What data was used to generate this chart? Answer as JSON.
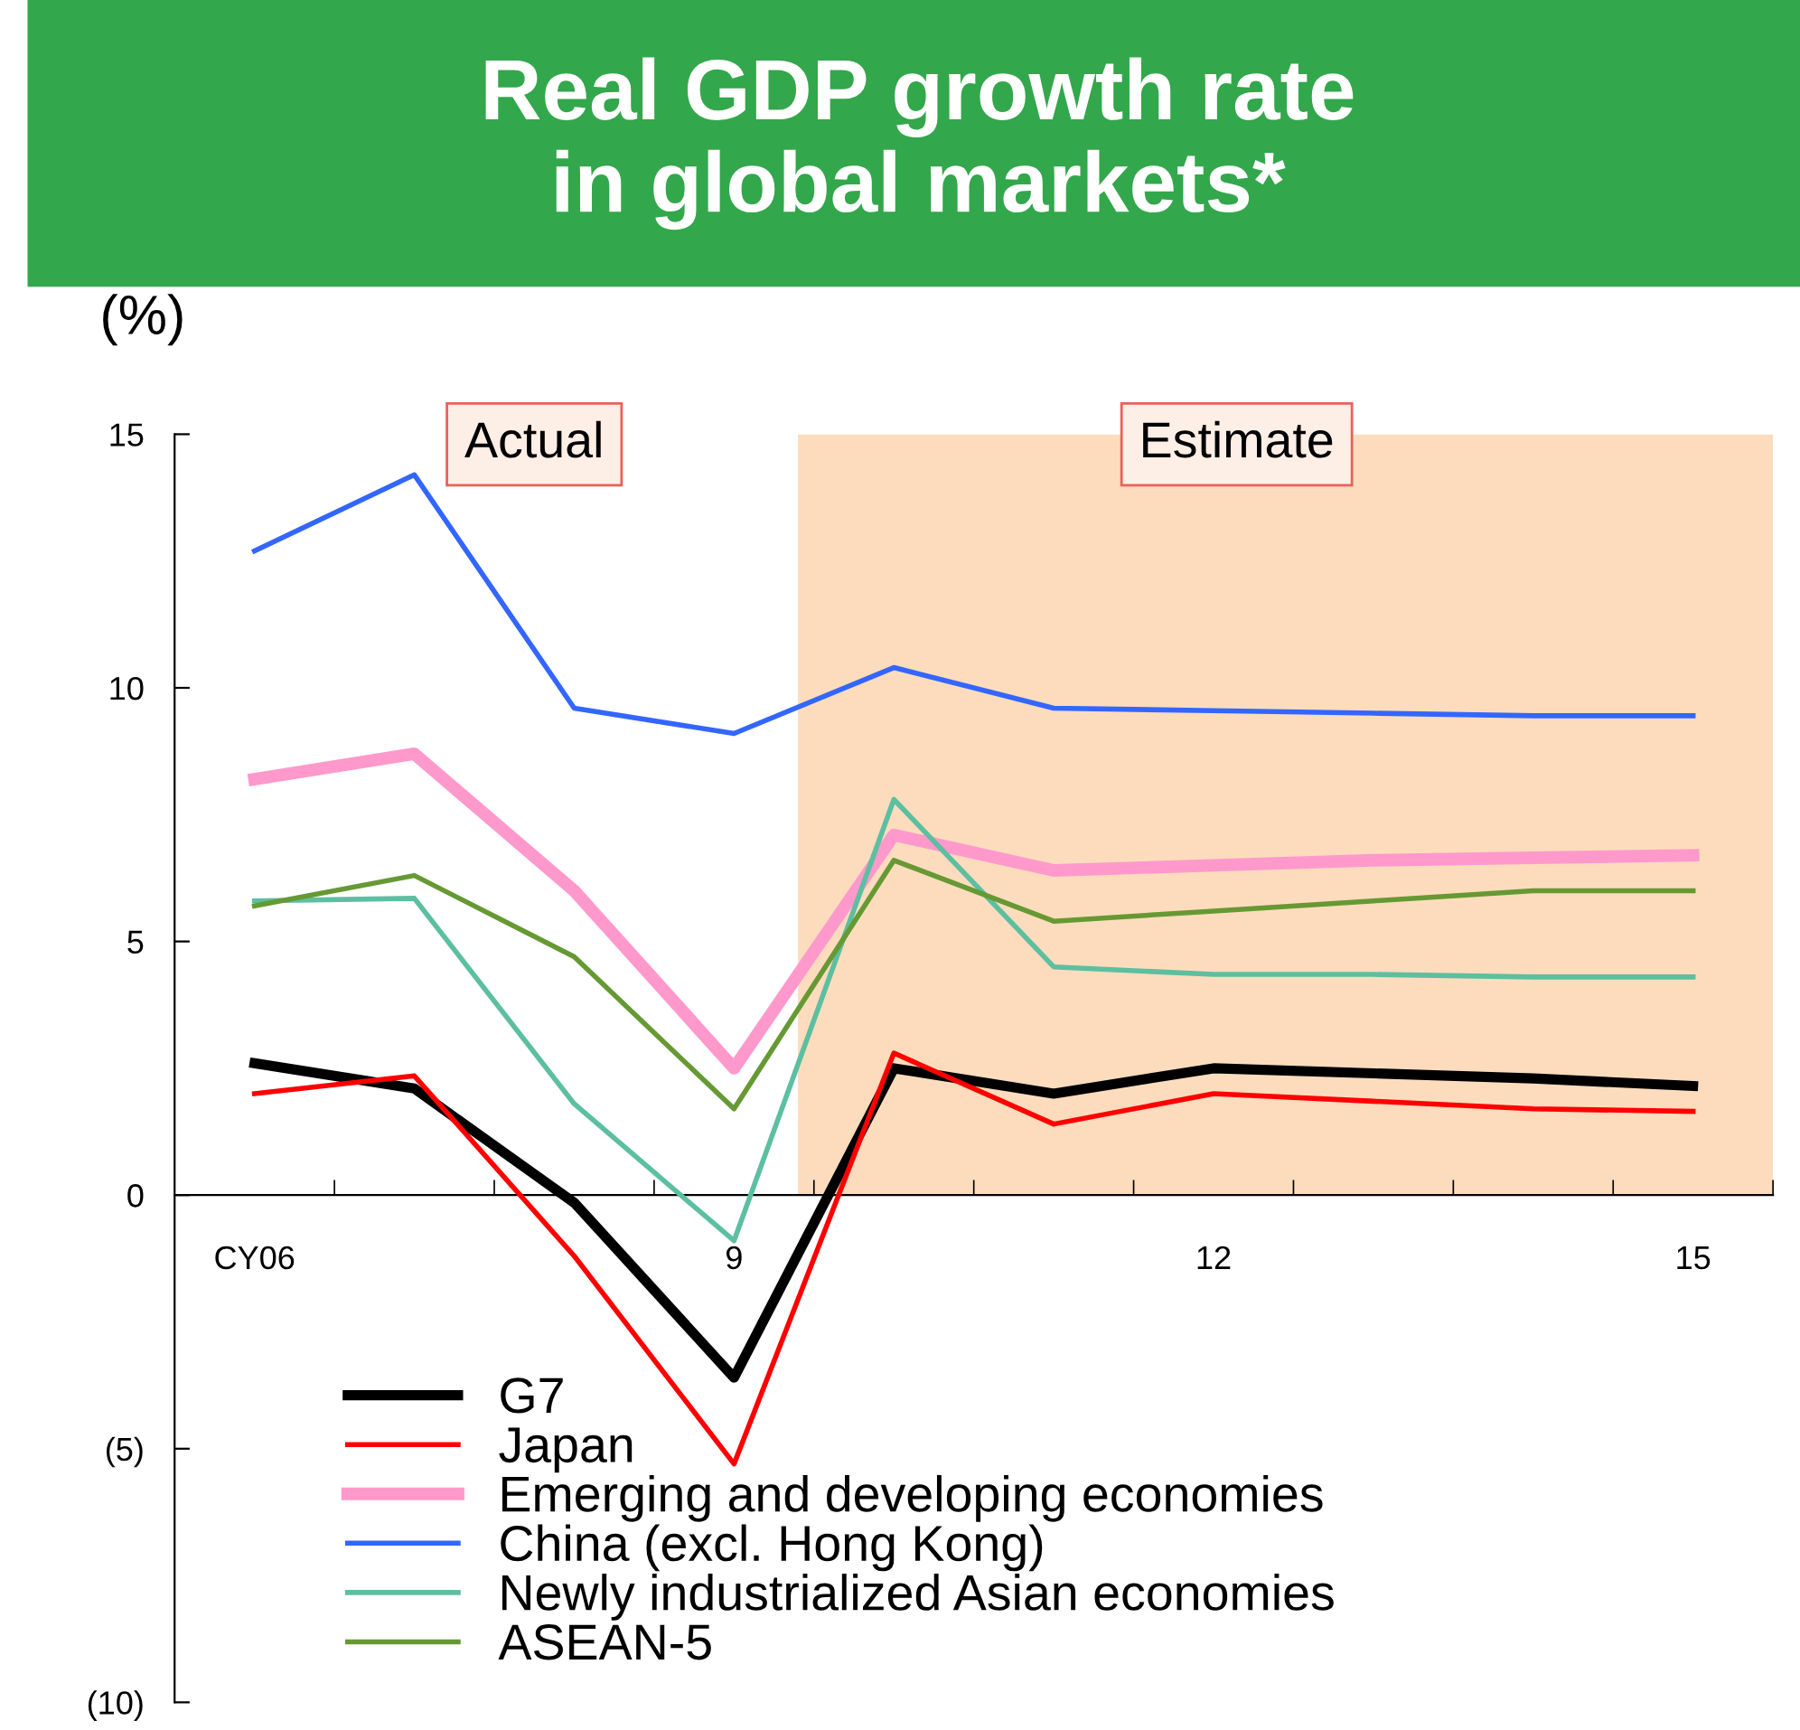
{
  "chart_data": {
    "type": "line",
    "title": "Real GDP growth rate\nin global markets*",
    "ylabel": "(%)",
    "x": [
      6,
      7,
      8,
      9,
      10,
      11,
      12,
      13,
      14,
      15
    ],
    "xlim": [
      5.5,
      15.5
    ],
    "xticks": [
      {
        "value": 6,
        "label": "CY06"
      },
      9,
      12,
      15,
      {
        "value": 6.5,
        "label": null
      },
      {
        "value": 7.5,
        "label": null
      },
      {
        "value": 8.5,
        "label": null
      },
      {
        "value": 9.5,
        "label": null
      },
      {
        "value": 10.5,
        "label": null
      },
      {
        "value": 11.5,
        "label": null
      },
      {
        "value": 12.5,
        "label": null
      },
      {
        "value": 13.5,
        "label": null
      },
      {
        "value": 14.5,
        "label": null
      },
      {
        "value": 15.5,
        "label": null
      }
    ],
    "ylim": [
      -10,
      15
    ],
    "yticks": [
      {
        "value": -10,
        "label": "(10)"
      },
      {
        "value": -5,
        "label": "(5)"
      },
      0,
      5,
      10,
      15
    ],
    "series": [
      {
        "name": "G7",
        "color": "#000000",
        "values": [
          2.6,
          2.1,
          -0.15,
          -3.6,
          2.5,
          2.0,
          2.5,
          2.4,
          2.3,
          2.15
        ]
      },
      {
        "name": "Japan",
        "color": "#ff0000",
        "values": [
          2.0,
          2.35,
          -1.2,
          -5.3,
          2.8,
          1.4,
          2.0,
          1.85,
          1.7,
          1.65
        ]
      },
      {
        "name": "Emerging and developing economies",
        "color": "#ff99cc",
        "values": [
          8.2,
          8.7,
          6.0,
          2.5,
          7.1,
          6.4,
          6.5,
          6.6,
          6.65,
          6.7
        ]
      },
      {
        "name": "China (excl. Hong Kong)",
        "color": "#3366ff",
        "values": [
          12.7,
          14.2,
          9.6,
          9.1,
          10.4,
          9.6,
          9.55,
          9.5,
          9.45,
          9.45
        ]
      },
      {
        "name": "Newly industrialized Asian economies",
        "color": "#5cbfa0",
        "values": [
          5.8,
          5.85,
          1.8,
          -0.9,
          7.8,
          4.5,
          4.35,
          4.35,
          4.3,
          4.3
        ]
      },
      {
        "name": "ASEAN-5",
        "color": "#669933",
        "values": [
          5.7,
          6.3,
          4.7,
          1.7,
          6.6,
          5.4,
          5.6,
          5.8,
          6.0,
          6.0
        ]
      }
    ],
    "bands": [
      {
        "axis": "x",
        "from": 9.4,
        "to": 15.5,
        "label": "Estimate",
        "color": "#fddcbd"
      }
    ],
    "annotations": [
      "Actual"
    ],
    "legend": "bottom left",
    "grid": false,
    "marker": "none",
    "line_style": "solid"
  }
}
